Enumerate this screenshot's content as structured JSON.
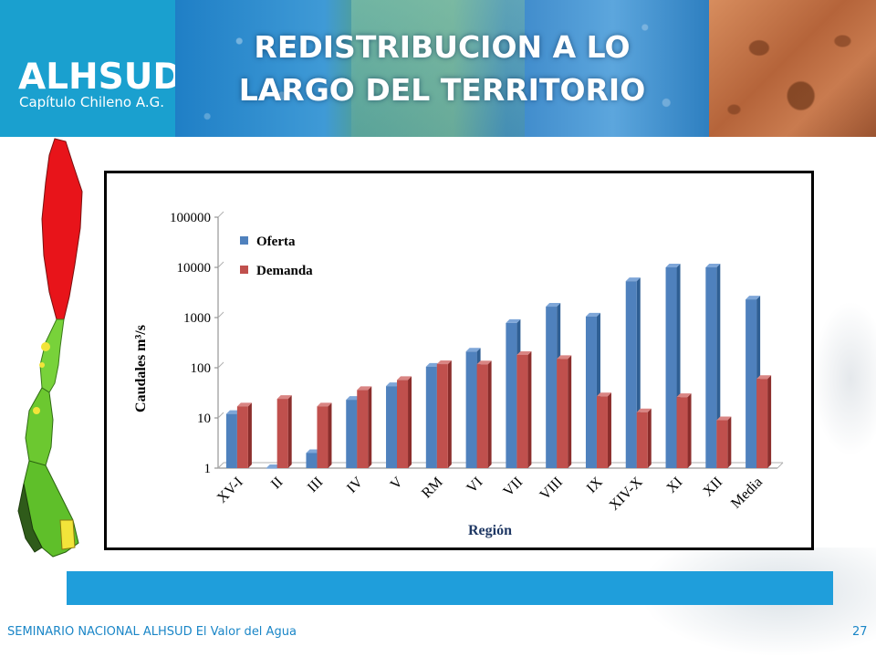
{
  "logo": {
    "name": "ALHSUD",
    "subtitle": "Capítulo Chileno A.G."
  },
  "slide": {
    "title_line1": "REDISTRIBUCION A LO",
    "title_line2": "LARGO DEL TERRITORIO"
  },
  "footer": {
    "text": "SEMINARIO NACIONAL ALHSUD El Valor del Agua",
    "page": "27"
  },
  "colors": {
    "oferta": "#4f81bd",
    "demanda": "#c0504d",
    "band": "#1f9edb",
    "logo_bg": "#1aa0cf"
  },
  "chart_data": {
    "type": "bar",
    "title": "",
    "xlabel": "Región",
    "ylabel": "Caudales m³/s",
    "yscale": "log",
    "ylim": [
      1,
      100000
    ],
    "yticks": [
      "1",
      "10",
      "100",
      "1000",
      "10000",
      "100000"
    ],
    "categories": [
      "XV-I",
      "II",
      "III",
      "IV",
      "V",
      "RM",
      "VI",
      "VII",
      "VIII",
      "IX",
      "XIV-X",
      "XI",
      "XII",
      "Media"
    ],
    "series": [
      {
        "name": "Oferta",
        "color": "#4f81bd",
        "values": [
          12,
          1,
          2,
          23,
          43,
          105,
          210,
          780,
          1650,
          1050,
          5300,
          10000,
          10000,
          2300
        ]
      },
      {
        "name": "Demanda",
        "color": "#c0504d",
        "values": [
          17,
          24,
          17,
          36,
          57,
          118,
          117,
          180,
          150,
          27,
          13,
          26,
          9,
          60
        ]
      }
    ],
    "legend": "top-left",
    "grid": false
  }
}
